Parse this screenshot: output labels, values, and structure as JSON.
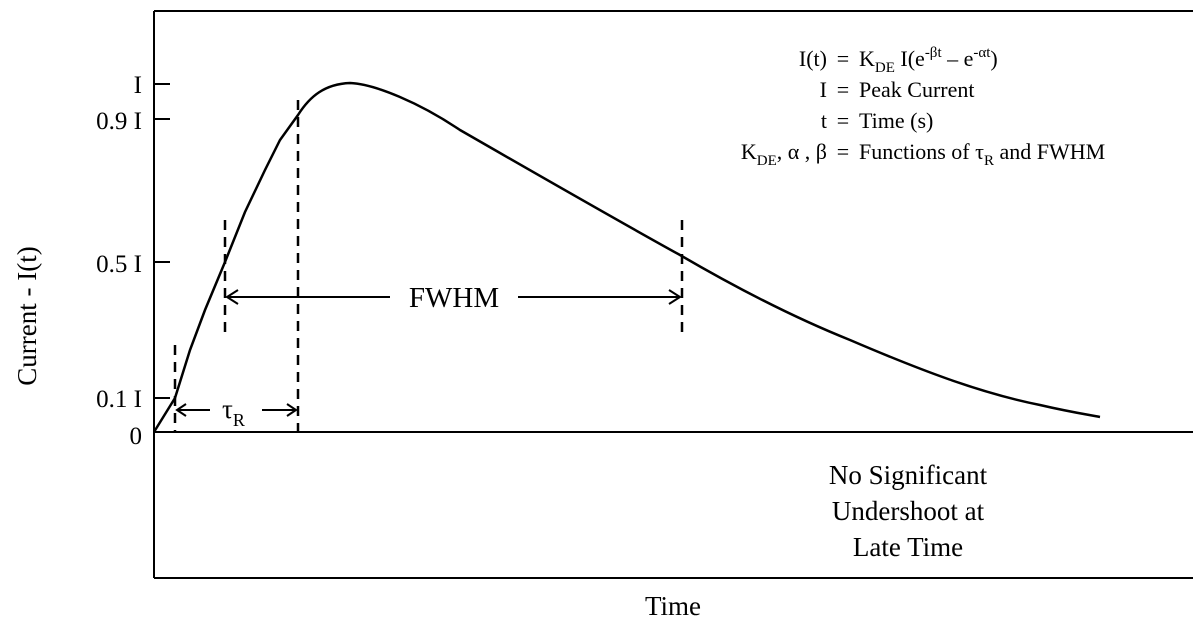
{
  "figure": {
    "y_axis_label": "Current - I(t)",
    "x_axis_label": "Time",
    "tick_labels": {
      "peak": "I",
      "ninety": "0.9 I",
      "half": "0.5 I",
      "tenth": "0.1 I",
      "zero": "0"
    },
    "fwhm_label": "FWHM",
    "rise_time_label": {
      "symbol": "τ",
      "subscript": "R"
    },
    "equations": {
      "line1": {
        "lhs": "I(t)",
        "k": "K",
        "k_sub": "DE",
        "rhs_a": " I(e",
        "exp_beta": "-βt",
        "minus_e": " – e",
        "exp_alpha": "-αt",
        "close": ")"
      },
      "line2": {
        "lhs": "I",
        "rhs": "Peak Current"
      },
      "line3": {
        "lhs": "t",
        "rhs": "Time (s)"
      },
      "line4": {
        "k": "K",
        "k_sub": "DE",
        "lhs_rest": ", α , β",
        "rhs_a": "Functions of τ",
        "tau_sub": "R",
        "rhs_b": " and FWHM"
      },
      "equals": "="
    },
    "note_lines": [
      "No Significant",
      "Undershoot at",
      "Late Time"
    ]
  }
}
